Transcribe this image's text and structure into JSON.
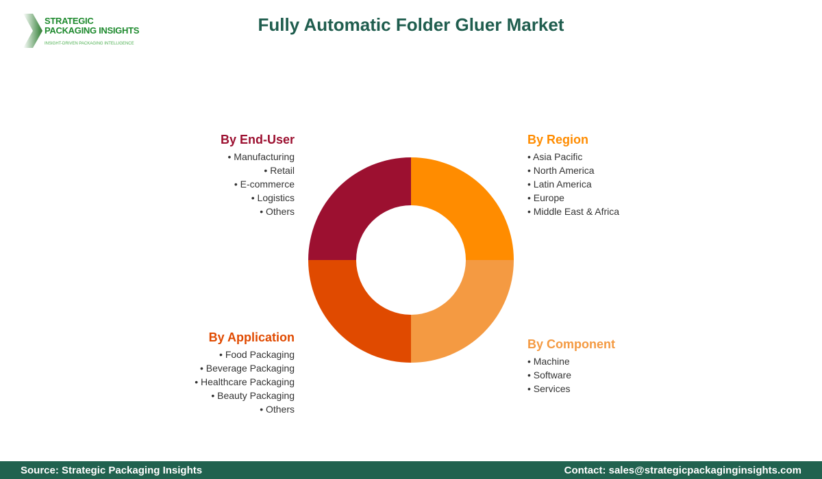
{
  "logo": {
    "line1": "STRATEGIC",
    "line2": "PACKAGING INSIGHTS",
    "tagline": "INSIGHT-DRIVEN PACKAGING INTELLIGENCE"
  },
  "title": "Fully Automatic Folder Gluer Market",
  "segments": [
    {
      "title": "By Region",
      "color": "#ff8c00",
      "items": [
        "Asia Pacific",
        "North America",
        "Latin America",
        "Europe",
        "Middle East & Africa"
      ]
    },
    {
      "title": "By Component",
      "color": "#f49a42",
      "items": [
        "Machine",
        "Software",
        "Services"
      ]
    },
    {
      "title": "By Application",
      "color": "#e04a00",
      "items": [
        "Food Packaging",
        "Beverage Packaging",
        "Healthcare Packaging",
        "Beauty Packaging",
        "Others"
      ]
    },
    {
      "title": "By End-User",
      "color": "#9c1030",
      "items": [
        "Manufacturing",
        "Retail",
        "E-commerce",
        "Logistics",
        "Others"
      ]
    }
  ],
  "footer": {
    "source": "Source: Strategic Packaging Insights",
    "contact": "Contact: sales@strategicpackaginginsights.com"
  }
}
